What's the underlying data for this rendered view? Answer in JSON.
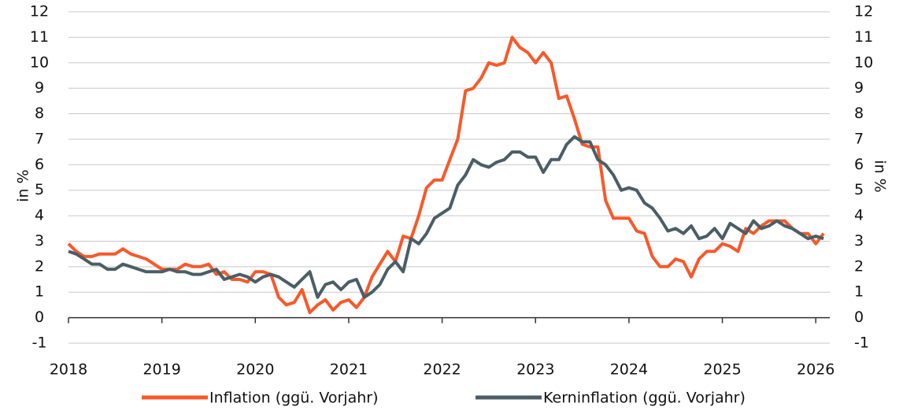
{
  "chart_data": {
    "type": "line",
    "y_label": "in %",
    "y2_label": "in %",
    "x": [
      2018,
      2018.083,
      2018.167,
      2018.25,
      2018.333,
      2018.417,
      2018.5,
      2018.583,
      2018.667,
      2018.75,
      2018.833,
      2018.917,
      2019,
      2019.083,
      2019.167,
      2019.25,
      2019.333,
      2019.417,
      2019.5,
      2019.583,
      2019.667,
      2019.75,
      2019.833,
      2019.917,
      2020,
      2020.083,
      2020.167,
      2020.25,
      2020.333,
      2020.417,
      2020.5,
      2020.583,
      2020.667,
      2020.75,
      2020.833,
      2020.917,
      2021,
      2021.083,
      2021.167,
      2021.25,
      2021.333,
      2021.417,
      2021.5,
      2021.583,
      2021.667,
      2021.75,
      2021.833,
      2021.917,
      2022,
      2022.083,
      2022.167,
      2022.25,
      2022.333,
      2022.417,
      2022.5,
      2022.583,
      2022.667,
      2022.75,
      2022.833,
      2022.917,
      2023,
      2023.083,
      2023.167,
      2023.25,
      2023.333,
      2023.417,
      2023.5,
      2023.583,
      2023.667,
      2023.75,
      2023.833,
      2023.917,
      2024,
      2024.083,
      2024.167,
      2024.25,
      2024.333,
      2024.417,
      2024.5,
      2024.583,
      2024.667,
      2024.75,
      2024.833,
      2024.917,
      2025,
      2025.083,
      2025.167,
      2025.25,
      2025.333,
      2025.417,
      2025.5,
      2025.583,
      2025.667,
      2025.75,
      2025.833,
      2025.917,
      2026,
      2026.083
    ],
    "series": [
      {
        "name": "Inflation (ggü. Vorjahr)",
        "color": "#f7592b",
        "axis": "y",
        "values": [
          2.9,
          2.6,
          2.4,
          2.4,
          2.5,
          2.5,
          2.5,
          2.7,
          2.5,
          2.4,
          2.3,
          2.1,
          1.9,
          1.9,
          1.9,
          2.1,
          2.0,
          2.0,
          2.1,
          1.7,
          1.8,
          1.5,
          1.5,
          1.4,
          1.8,
          1.8,
          1.7,
          0.8,
          0.5,
          0.6,
          1.1,
          0.2,
          0.5,
          0.7,
          0.3,
          0.6,
          0.7,
          0.4,
          0.8,
          1.6,
          2.1,
          2.6,
          2.2,
          3.2,
          3.1,
          4.0,
          5.1,
          5.4,
          5.4,
          6.2,
          7.0,
          8.9,
          9.0,
          9.4,
          10.0,
          9.9,
          10.0,
          11.0,
          10.6,
          10.4,
          10.0,
          10.4,
          10.0,
          8.6,
          8.7,
          7.8,
          6.8,
          6.7,
          6.7,
          4.6,
          3.9,
          3.9,
          3.9,
          3.4,
          3.3,
          2.4,
          2.0,
          2.0,
          2.3,
          2.2,
          1.6,
          2.3,
          2.6,
          2.6,
          2.9,
          2.8,
          2.6,
          3.5,
          3.3,
          3.6,
          3.8,
          3.8,
          3.8,
          3.5,
          3.3,
          3.3,
          2.9,
          3.3
        ]
      },
      {
        "name": "Kerninflation (ggü. Vorjahr)",
        "color": "#4b5e65",
        "axis": "y",
        "values": [
          2.6,
          2.5,
          2.3,
          2.1,
          2.1,
          1.9,
          1.9,
          2.1,
          2.0,
          1.9,
          1.8,
          1.8,
          1.8,
          1.9,
          1.8,
          1.8,
          1.7,
          1.7,
          1.8,
          1.9,
          1.5,
          1.6,
          1.7,
          1.6,
          1.4,
          1.6,
          1.7,
          1.6,
          1.4,
          1.2,
          1.5,
          1.8,
          0.8,
          1.3,
          1.4,
          1.1,
          1.4,
          1.5,
          0.8,
          1.0,
          1.3,
          1.9,
          2.2,
          1.8,
          3.1,
          2.9,
          3.3,
          3.9,
          4.1,
          4.3,
          5.2,
          5.6,
          6.2,
          6.0,
          5.9,
          6.1,
          6.2,
          6.5,
          6.5,
          6.3,
          6.3,
          5.7,
          6.2,
          6.2,
          6.8,
          7.1,
          6.9,
          6.9,
          6.2,
          6.0,
          5.6,
          5.0,
          5.1,
          5.0,
          4.5,
          4.3,
          3.9,
          3.4,
          3.5,
          3.3,
          3.6,
          3.1,
          3.2,
          3.5,
          3.1,
          3.7,
          3.5,
          3.3,
          3.8,
          3.5,
          3.6,
          3.8,
          3.6,
          3.5,
          3.3,
          3.1,
          3.2,
          3.1
        ]
      }
    ],
    "xlim": [
      2018,
      2026.15
    ],
    "xticks": [
      2018,
      2019,
      2020,
      2021,
      2022,
      2023,
      2024,
      2025,
      2026
    ],
    "ylim": [
      -1,
      12
    ],
    "yticks": [
      -1,
      0,
      1,
      2,
      3,
      4,
      5,
      6,
      7,
      8,
      9,
      10,
      11,
      12
    ],
    "y2lim": [
      -1,
      12
    ],
    "y2ticks": [
      -1,
      0,
      1,
      2,
      3,
      4,
      5,
      6,
      7,
      8,
      9,
      10,
      11,
      12
    ],
    "grid": true,
    "legend": "bottom"
  }
}
